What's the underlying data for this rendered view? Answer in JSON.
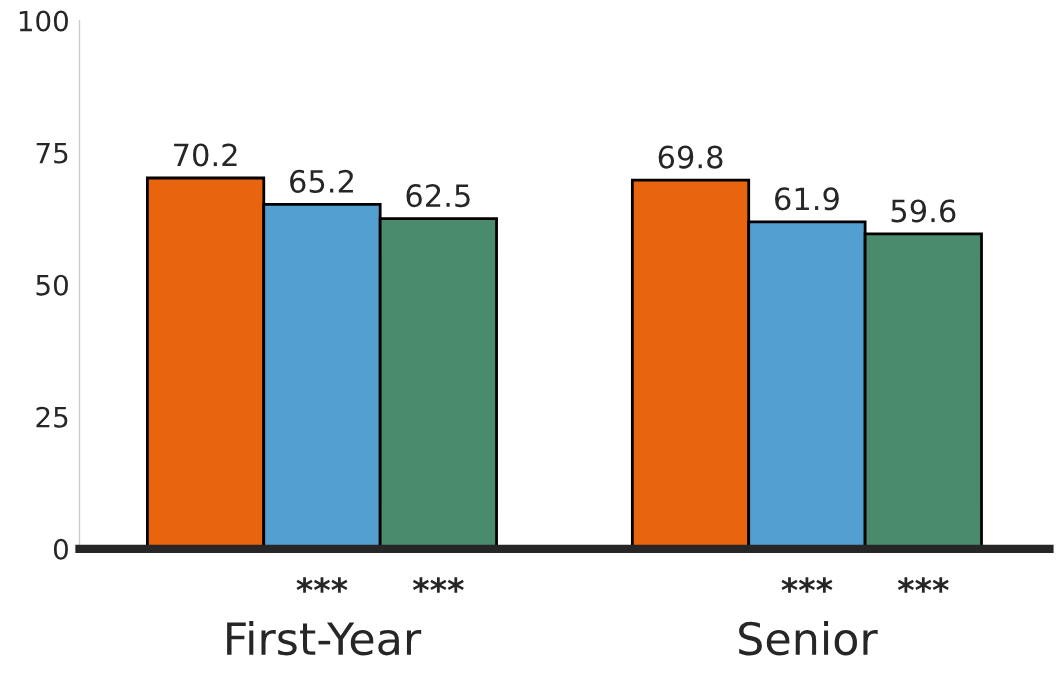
{
  "chart_data": {
    "type": "bar",
    "categories": [
      "First-Year",
      "Senior"
    ],
    "series": [
      {
        "color": "#e8640f",
        "values": [
          70.2,
          69.8
        ]
      },
      {
        "color": "#539fd0",
        "values": [
          65.2,
          61.9
        ]
      },
      {
        "color": "#4b8b6d",
        "values": [
          62.5,
          59.6
        ]
      }
    ],
    "ylim": [
      0,
      100
    ],
    "yticks": [
      0,
      25,
      50,
      75,
      100
    ],
    "grid": false,
    "data_labels": true,
    "annotations": [
      "***",
      "***",
      "***",
      "***"
    ]
  }
}
